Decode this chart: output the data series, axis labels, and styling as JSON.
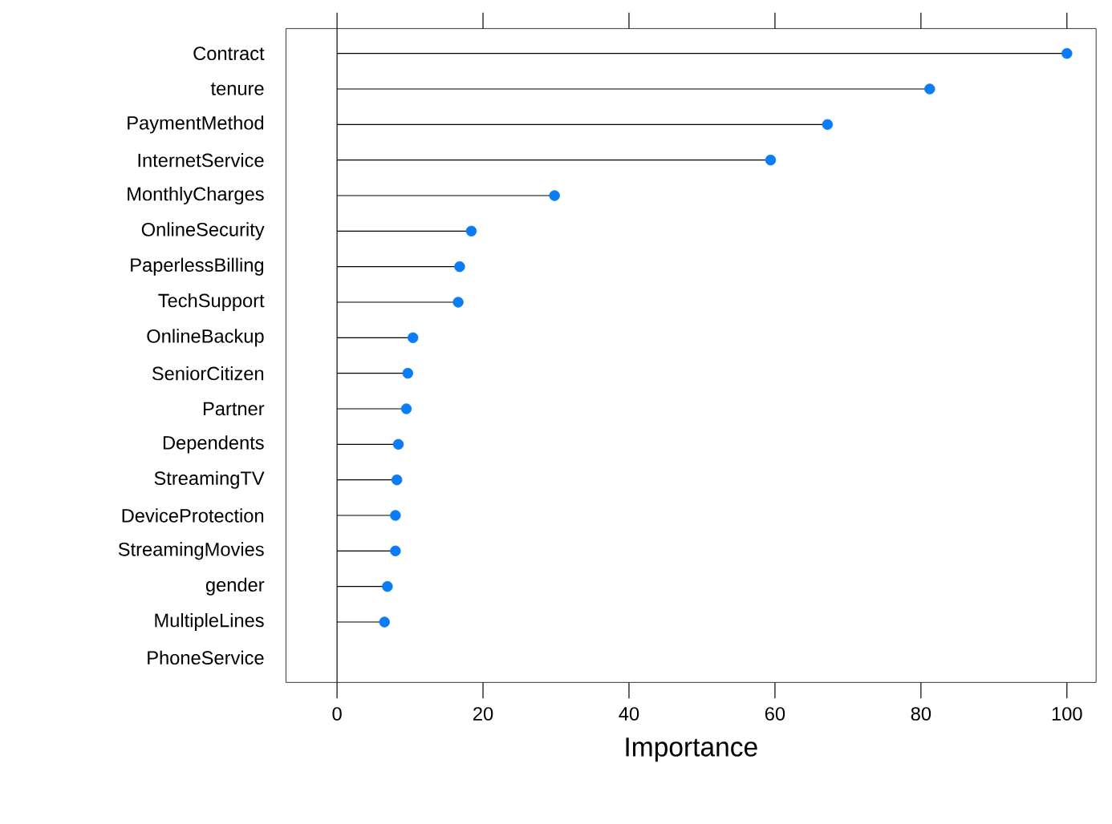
{
  "chart_data": {
    "type": "lollipop",
    "orientation": "horizontal",
    "xlabel": "Importance",
    "categories": [
      "Contract",
      "tenure",
      "PaymentMethod",
      "InternetService",
      "MonthlyCharges",
      "OnlineSecurity",
      "PaperlessBilling",
      "TechSupport",
      "OnlineBackup",
      "SeniorCitizen",
      "Partner",
      "Dependents",
      "StreamingTV",
      "DeviceProtection",
      "StreamingMovies",
      "gender",
      "MultipleLines",
      "PhoneService"
    ],
    "values": [
      100,
      81.2,
      67.2,
      59.4,
      29.8,
      18.4,
      16.8,
      16.6,
      10.4,
      9.7,
      9.5,
      8.4,
      8.2,
      8.0,
      8.0,
      6.9,
      6.5,
      null
    ],
    "color": "#0a7cf5",
    "marker": "circle",
    "xlim": [
      -7,
      104
    ],
    "xticks": [
      0,
      20,
      40,
      60,
      80,
      100
    ],
    "ref_lines": [
      {
        "axis": "x",
        "value": 0
      }
    ]
  }
}
